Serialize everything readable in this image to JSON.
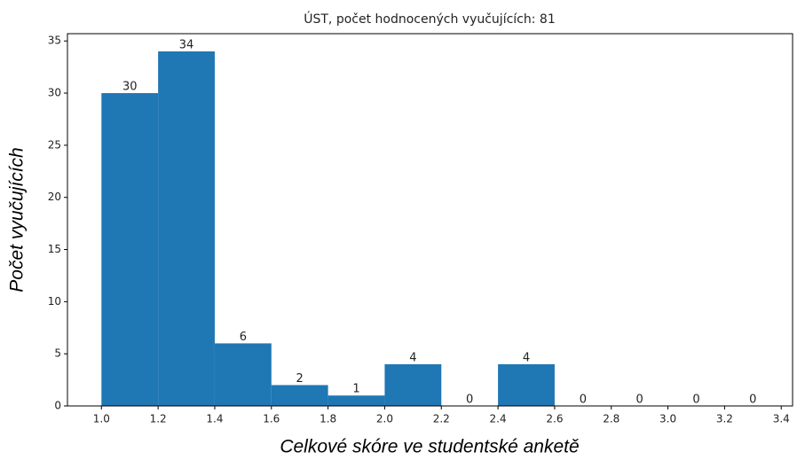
{
  "chart_data": {
    "type": "histogram",
    "title": "ÚST, počet hodnocených vyučujících: 81",
    "xlabel": "Celkové skóre ve studentské anketě",
    "ylabel": "Počet vyučujících",
    "bins": [
      1.0,
      1.2,
      1.4,
      1.6,
      1.8,
      2.0,
      2.2,
      2.4,
      2.6,
      2.8,
      3.0,
      3.2,
      3.4
    ],
    "counts": [
      30,
      34,
      6,
      2,
      1,
      4,
      0,
      4,
      0,
      0,
      0,
      0
    ],
    "color": "#1f77b4",
    "xlim": [
      0.88,
      3.44
    ],
    "ylim": [
      0,
      35.7
    ],
    "xticks": [
      {
        "value": 1,
        "label": "1.0"
      },
      1.2,
      1.4,
      1.6,
      1.8,
      {
        "value": 2,
        "label": "2.0"
      },
      2.2,
      2.4,
      2.6,
      2.8,
      {
        "value": 3,
        "label": "3.0"
      },
      3.2,
      3.4
    ],
    "yticks": [
      0,
      5,
      10,
      15,
      20,
      25,
      30,
      35
    ]
  }
}
